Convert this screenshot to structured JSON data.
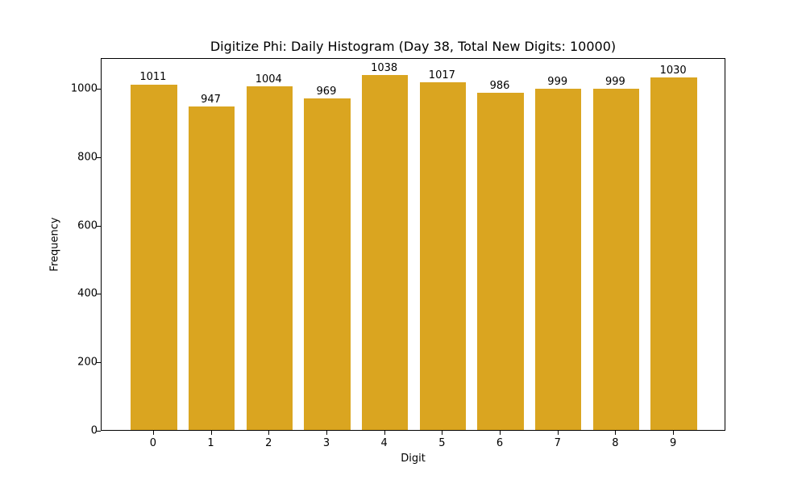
{
  "chart_data": {
    "type": "bar",
    "title": "Digitize Phi: Daily Histogram (Day 38, Total New Digits: 10000)",
    "xlabel": "Digit",
    "ylabel": "Frequency",
    "categories": [
      "0",
      "1",
      "2",
      "3",
      "4",
      "5",
      "6",
      "7",
      "8",
      "9"
    ],
    "values": [
      1011,
      947,
      1004,
      969,
      1038,
      1017,
      986,
      999,
      999,
      1030
    ],
    "yticks": [
      0,
      200,
      400,
      600,
      800,
      1000
    ],
    "ylim": [
      0,
      1090
    ],
    "grid": false,
    "legend": null,
    "bar_color": "#DAA520",
    "data_labels": true
  }
}
